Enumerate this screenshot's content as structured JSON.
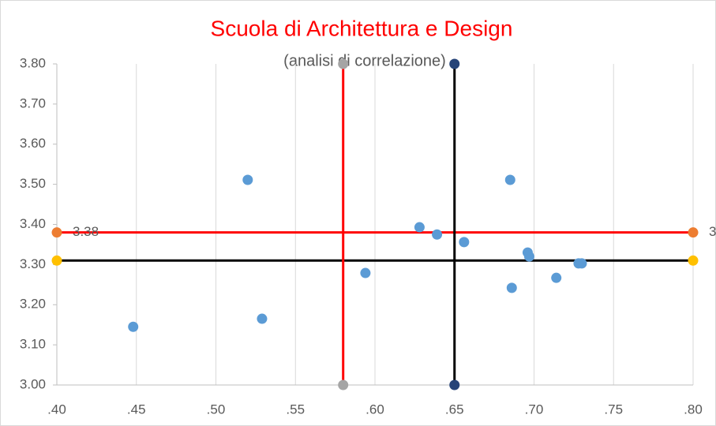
{
  "chart_data": {
    "type": "scatter",
    "title": "Scuola di Architettura e Design",
    "subtitle": "(analisi di correlazione)",
    "xlim": [
      0.4,
      0.8
    ],
    "xticks": [
      {
        "value": 0.4,
        "label": ".40"
      },
      {
        "value": 0.45,
        "label": ".45"
      },
      {
        "value": 0.5,
        "label": ".50"
      },
      {
        "value": 0.55,
        "label": ".55"
      },
      {
        "value": 0.6,
        "label": ".60"
      },
      {
        "value": 0.65,
        "label": ".65"
      },
      {
        "value": 0.7,
        "label": ".70"
      },
      {
        "value": 0.75,
        "label": ".75"
      },
      {
        "value": 0.8,
        "label": ".80"
      }
    ],
    "ylim": [
      3.0,
      3.8
    ],
    "yticks": [
      {
        "value": 3.0,
        "label": "3.00"
      },
      {
        "value": 3.1,
        "label": "3.10"
      },
      {
        "value": 3.2,
        "label": "3.20"
      },
      {
        "value": 3.3,
        "label": "3.30"
      },
      {
        "value": 3.4,
        "label": "3.40"
      },
      {
        "value": 3.5,
        "label": "3.50"
      },
      {
        "value": 3.6,
        "label": "3.60"
      },
      {
        "value": 3.7,
        "label": "3.70"
      },
      {
        "value": 3.8,
        "label": "3.80"
      }
    ],
    "grid": true,
    "series": [
      {
        "color": "#5b9bd5",
        "line": false,
        "x": [
          0.448,
          0.52,
          0.529,
          0.594,
          0.628,
          0.639,
          0.656,
          0.685,
          0.696,
          0.697,
          0.686,
          0.714,
          0.728,
          0.73
        ],
        "values": [
          3.145,
          3.511,
          3.165,
          3.279,
          3.393,
          3.375,
          3.356,
          3.511,
          3.33,
          3.32,
          3.242,
          3.267,
          3.303,
          3.303
        ]
      },
      {
        "color": "#ed7d31",
        "line": true,
        "line_color": "#ff0000",
        "data_labels": true,
        "x": [
          0.4,
          0.8
        ],
        "values": [
          3.38,
          3.38
        ]
      },
      {
        "color": "#ffc000",
        "line": true,
        "line_color": "#000000",
        "x": [
          0.4,
          0.8
        ],
        "values": [
          3.31,
          3.31
        ]
      },
      {
        "color": "#a5a5a5",
        "line": true,
        "line_color": "#ff0000",
        "x": [
          0.58,
          0.58
        ],
        "values": [
          3.0,
          3.8
        ]
      },
      {
        "color": "#264478",
        "line": true,
        "line_color": "#000000",
        "x": [
          0.65,
          0.65
        ],
        "values": [
          3.0,
          3.8
        ]
      }
    ]
  }
}
